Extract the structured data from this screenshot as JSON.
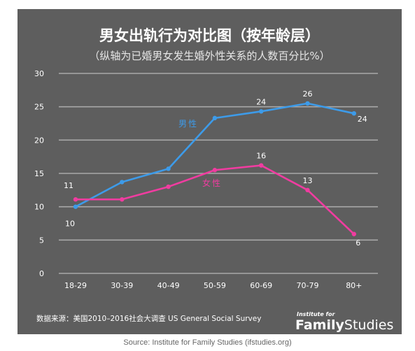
{
  "header": {
    "title": "男女出轨行为对比图（按年龄层）",
    "subtitle": "（纵轴为已婚男女发生婚外性关系的人数百分比%）"
  },
  "footer": {
    "note": "数据来源：美国2010–2016社会大调查  US General Social Survey",
    "brand_small": "Institute for",
    "brand_bold": "Family",
    "brand_rest": "Studies"
  },
  "source": "Source: Institute for Family Studies  (ifstudies.org)",
  "chart_data": {
    "type": "line",
    "categories": [
      "18-29",
      "30-39",
      "40-49",
      "50-59",
      "60-69",
      "70-79",
      "80+"
    ],
    "ylim": [
      0,
      30
    ],
    "yticks": [
      0,
      5,
      10,
      15,
      20,
      25,
      30
    ],
    "grid": true,
    "series": [
      {
        "name": "男性",
        "color": "#3d9be9",
        "values": [
          10,
          13.7,
          15.7,
          23.3,
          24.3,
          25.5,
          24
        ],
        "labels": [
          "10",
          "",
          "",
          "",
          "24",
          "26",
          "24"
        ]
      },
      {
        "name": "女性",
        "color": "#f03ca0",
        "values": [
          11.1,
          11.1,
          13,
          15.5,
          16.2,
          12.5,
          5.9
        ],
        "labels": [
          "11",
          "",
          "",
          "",
          "16",
          "13",
          "6"
        ]
      }
    ]
  }
}
